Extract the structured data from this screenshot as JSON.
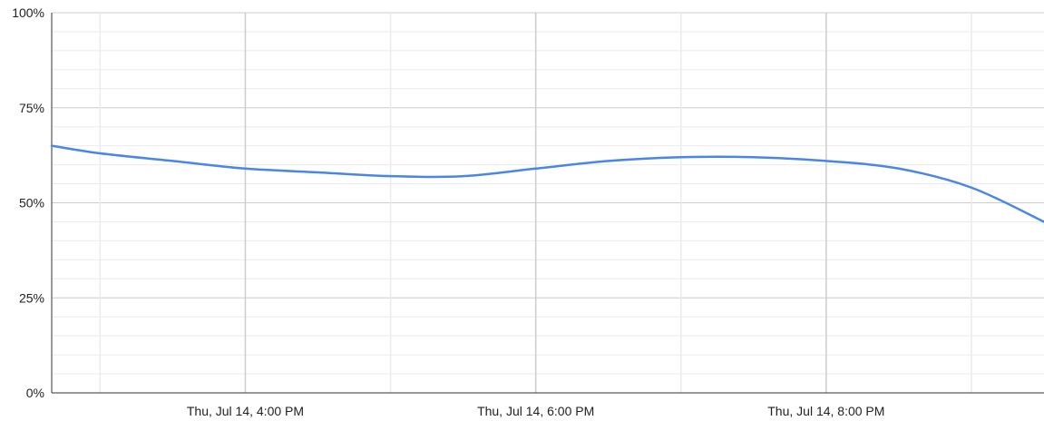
{
  "chart_data": {
    "type": "line",
    "title": "",
    "xlabel": "",
    "ylabel": "",
    "x": [
      "Thu, Jul 14, 2:40 PM",
      "Thu, Jul 14, 3:00 PM",
      "Thu, Jul 14, 3:30 PM",
      "Thu, Jul 14, 4:00 PM",
      "Thu, Jul 14, 4:30 PM",
      "Thu, Jul 14, 5:00 PM",
      "Thu, Jul 14, 5:30 PM",
      "Thu, Jul 14, 6:00 PM",
      "Thu, Jul 14, 6:30 PM",
      "Thu, Jul 14, 7:00 PM",
      "Thu, Jul 14, 7:30 PM",
      "Thu, Jul 14, 8:00 PM",
      "Thu, Jul 14, 8:30 PM",
      "Thu, Jul 14, 9:00 PM",
      "Thu, Jul 14, 9:30 PM"
    ],
    "series": [
      {
        "name": "",
        "values": [
          65,
          63,
          61,
          59,
          58,
          57,
          57,
          59,
          61,
          62,
          62,
          61,
          59,
          54,
          45
        ]
      }
    ],
    "ylim": [
      0,
      100
    ],
    "yticks": [
      "0%",
      "25%",
      "50%",
      "75%",
      "100%"
    ],
    "xticks": [
      "Thu, Jul 14, 4:00 PM",
      "Thu, Jul 14, 6:00 PM",
      "Thu, Jul 14, 8:00 PM"
    ],
    "grid": true,
    "legend": "none",
    "colors": {
      "line": "#4a86e8",
      "major_grid": "#cccccc",
      "minor_grid": "#ebebeb",
      "axis": "#333333"
    }
  }
}
